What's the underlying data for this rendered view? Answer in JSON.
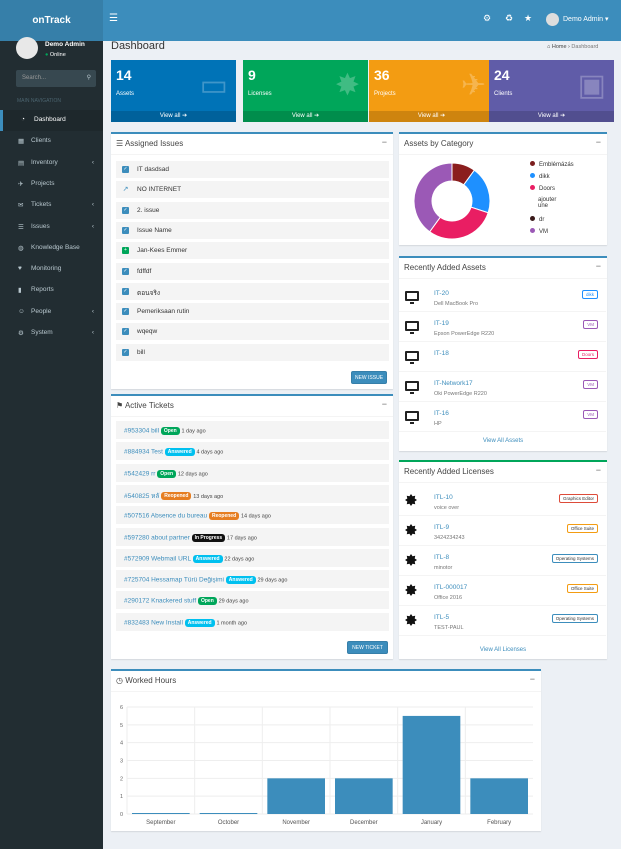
{
  "header": {
    "logo": "onTrack",
    "user": "Demo Admin"
  },
  "sidebar": {
    "user_name": "Demo Admin",
    "status": "Online",
    "search_placeholder": "Search...",
    "section": "MAIN NAVIGATION",
    "items": [
      {
        "label": "Dashboard"
      },
      {
        "label": "Clients"
      },
      {
        "label": "Inventory"
      },
      {
        "label": "Projects"
      },
      {
        "label": "Tickets"
      },
      {
        "label": "Issues"
      },
      {
        "label": "Knowledge Base"
      },
      {
        "label": "Monitoring"
      },
      {
        "label": "Reports"
      },
      {
        "label": "People"
      },
      {
        "label": "System"
      }
    ]
  },
  "page": {
    "title": "Dashboard",
    "breadcrumb_home": "Home",
    "breadcrumb_current": "Dashboard"
  },
  "infoboxes": [
    {
      "num": "14",
      "label": "Assets",
      "foot": "View all",
      "color": "#0073b7"
    },
    {
      "num": "9",
      "label": "Licenses",
      "foot": "View all",
      "color": "#00a65a"
    },
    {
      "num": "36",
      "label": "Projects",
      "foot": "View all",
      "color": "#f39c12"
    },
    {
      "num": "24",
      "label": "Clients",
      "foot": "View all",
      "color": "#605ca8"
    }
  ],
  "issues": {
    "title": "Assigned Issues",
    "button": "NEW ISSUE",
    "rows": [
      "IT dasdsad",
      "NO INTERNET",
      "2. issue",
      "Issue Name",
      "Jan-Kees Emmer",
      "fdffdf",
      "ตอนจริง",
      "Pemeriksaan rutin",
      "wqeqw",
      "bill"
    ]
  },
  "tickets": {
    "title": "Active Tickets",
    "button": "NEW TICKET",
    "rows": [
      {
        "title": "#953304 bill",
        "status": "Open",
        "ago": "1 day ago",
        "color": "#00a65a"
      },
      {
        "title": "#884934 Test",
        "status": "Answered",
        "ago": "4 days ago",
        "color": "#00c0ef"
      },
      {
        "title": "#542429 rr",
        "status": "Open",
        "ago": "12 days ago",
        "color": "#00a65a"
      },
      {
        "title": "#540825 หลั",
        "status": "Reopened",
        "ago": "13 days ago",
        "color": "#e67e22"
      },
      {
        "title": "#507516 Absence du bureau",
        "status": "Reopened",
        "ago": "14 days ago",
        "color": "#e67e22"
      },
      {
        "title": "#597280 about partner",
        "status": "In Progress",
        "ago": "17 days ago",
        "color": "#111"
      },
      {
        "title": "#572909 Webmail URL",
        "status": "Answered",
        "ago": "22 days ago",
        "color": "#00c0ef"
      },
      {
        "title": "#725704 Hessamap Türü Değişimi",
        "status": "Answered",
        "ago": "29 days ago",
        "color": "#00c0ef"
      },
      {
        "title": "#290172 Knackered stuff",
        "status": "Open",
        "ago": "29 days ago",
        "color": "#00a65a"
      },
      {
        "title": "#832483 New Install",
        "status": "Answered",
        "ago": "1 month ago",
        "color": "#00c0ef"
      }
    ]
  },
  "category": {
    "title": "Assets by Category",
    "legend": [
      {
        "label": "Emblémázás",
        "color": "#7b1e1e"
      },
      {
        "label": "dikk",
        "color": "#1e90ff"
      },
      {
        "label": "Doors",
        "color": "#e91e63"
      },
      {
        "label": "ajouter une",
        "color": ""
      },
      {
        "label": "dr",
        "color": "#3a1a1a"
      },
      {
        "label": "VM",
        "color": "#9b59b6"
      }
    ],
    "slices": [
      {
        "label": "Emblémázás",
        "value": 1,
        "color": "#8b1e1e"
      },
      {
        "label": "dikk",
        "value": 2,
        "color": "#1e90ff"
      },
      {
        "label": "Doors",
        "value": 3,
        "color": "#e91e63"
      },
      {
        "label": "VM",
        "value": 4,
        "color": "#9b59b6"
      }
    ]
  },
  "assets": {
    "title": "Recently Added Assets",
    "link": "View All Assets",
    "rows": [
      {
        "name": "IT-20",
        "sub": "Dell MacBook Pro",
        "tag": "dikk",
        "tagcolor": "#1e90ff"
      },
      {
        "name": "IT-19",
        "sub": "Epson PowerEdge R220",
        "tag": "VM",
        "tagcolor": "#9b59b6"
      },
      {
        "name": "IT-18",
        "sub": "",
        "tag": "Doors",
        "tagcolor": "#e91e63"
      },
      {
        "name": "IT-Network17",
        "sub": "Oki PowerEdge R220",
        "tag": "VM",
        "tagcolor": "#9b59b6"
      },
      {
        "name": "IT-16",
        "sub": "HP",
        "tag": "VM",
        "tagcolor": "#9b59b6"
      }
    ]
  },
  "licenses": {
    "title": "Recently Added Licenses",
    "link": "View All Licenses",
    "rows": [
      {
        "name": "ITL-10",
        "sub": "voice over",
        "tag": "Graphics Editor",
        "tagcolor": "#dd4b39"
      },
      {
        "name": "ITL-9",
        "sub": "3424234243",
        "tag": "Office Suite",
        "tagcolor": "#f39c12"
      },
      {
        "name": "ITL-8",
        "sub": "minotor",
        "tag": "Operating Systems",
        "tagcolor": "#3c8dbc"
      },
      {
        "name": "ITL-000017",
        "sub": "Office 2016",
        "tag": "Office Suite",
        "tagcolor": "#f39c12"
      },
      {
        "name": "ITL-5",
        "sub": "TEST-PAUL",
        "tag": "Operating Systems",
        "tagcolor": "#3c8dbc"
      }
    ]
  },
  "worked": {
    "title": "Worked Hours"
  },
  "chart_data": {
    "type": "bar",
    "categories": [
      "September",
      "October",
      "November",
      "December",
      "January",
      "February"
    ],
    "values": [
      0,
      0,
      2,
      2,
      5.5,
      2
    ],
    "ylim": [
      0,
      6
    ],
    "yticks": [
      "0",
      "1",
      "2",
      "3",
      "4",
      "5",
      "6"
    ],
    "color": "#3c8dbc"
  }
}
